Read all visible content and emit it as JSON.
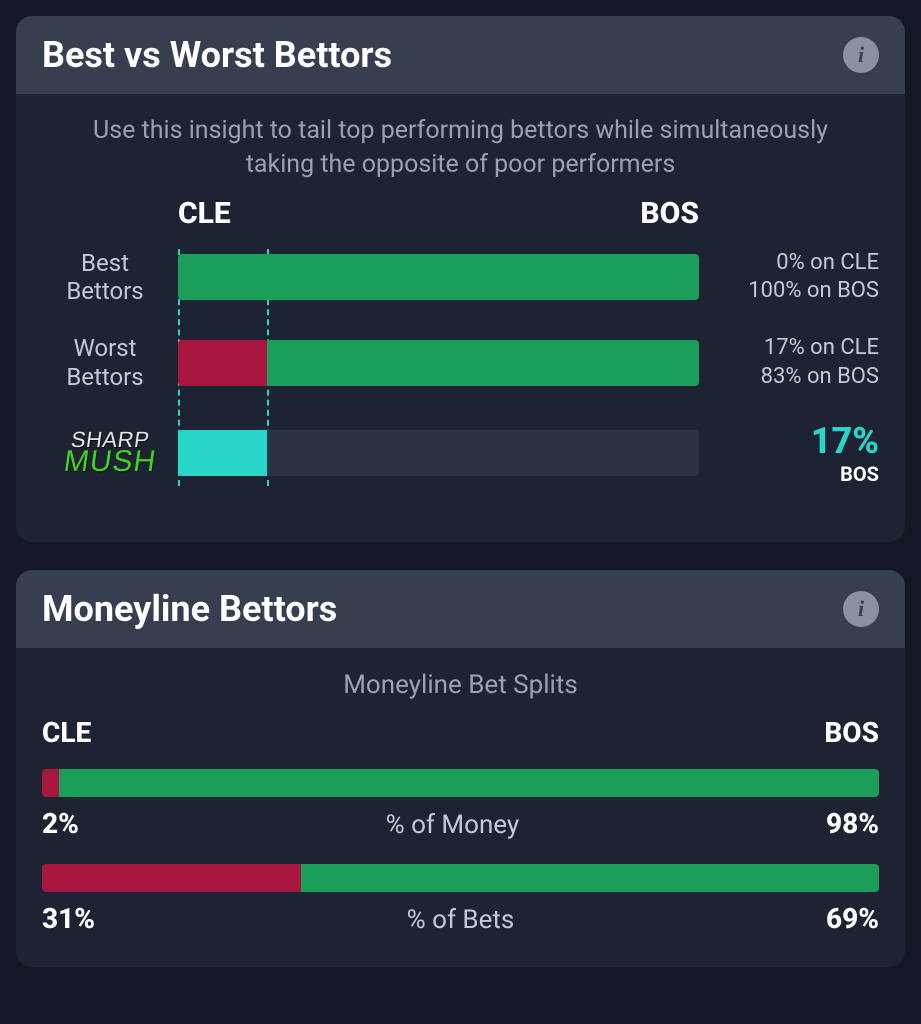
{
  "colors": {
    "green": "#1b9e5a",
    "red": "#a6163e",
    "teal": "#28d6c8",
    "track": "#2a3142",
    "mush_green": "#3fd423"
  },
  "card1": {
    "title": "Best vs Worst Bettors",
    "subtitle": "Use this insight to tail top performing bettors while simultaneously taking the opposite of poor performers",
    "team_left": "CLE",
    "team_right": "BOS",
    "rows": {
      "best": {
        "label_l1": "Best",
        "label_l2": "Bettors",
        "left_pct": 0,
        "right_pct": 100,
        "stat_l1": "0% on CLE",
        "stat_l2": "100% on BOS"
      },
      "worst": {
        "label_l1": "Worst",
        "label_l2": "Bettors",
        "left_pct": 17,
        "right_pct": 83,
        "stat_l1": "17% on CLE",
        "stat_l2": "83% on BOS"
      },
      "mush": {
        "logo_top": "SHARP",
        "logo_bottom": "MUSH",
        "pct": 17,
        "pct_text": "17%",
        "side": "BOS"
      }
    },
    "guides": {
      "best_left_pct": 0,
      "worst_left_pct": 17
    }
  },
  "card2": {
    "title": "Moneyline Bettors",
    "subtitle": "Moneyline Bet Splits",
    "team_left": "CLE",
    "team_right": "BOS",
    "money": {
      "left_pct": 2,
      "right_pct": 98,
      "left_text": "2%",
      "right_text": "98%",
      "label": "% of Money"
    },
    "bets": {
      "left_pct": 31,
      "right_pct": 69,
      "left_text": "31%",
      "right_text": "69%",
      "label": "% of Bets"
    }
  }
}
